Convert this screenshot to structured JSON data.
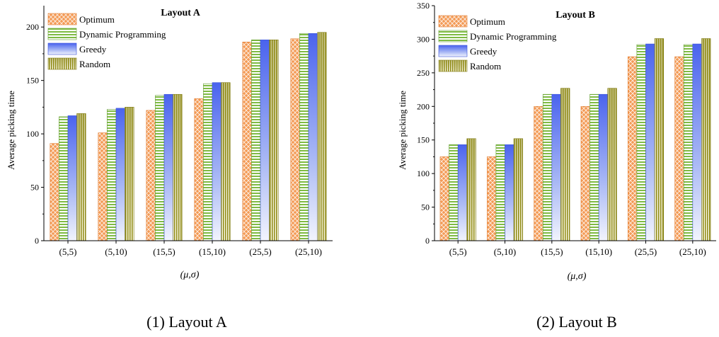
{
  "chart_data": [
    {
      "type": "bar",
      "title": "Layout A",
      "xlabel": "(μ,σ)",
      "ylabel": "Average picking time",
      "caption": "(1) Layout A",
      "categories": [
        "(5,5)",
        "(5,10)",
        "(15,5)",
        "(15,10)",
        "(25,5)",
        "(25,10)"
      ],
      "ylim": [
        0,
        220
      ],
      "yticks": [
        0,
        50,
        100,
        150,
        200
      ],
      "legend_position": "top-left",
      "series": [
        {
          "name": "Optimum",
          "values": [
            91,
            101,
            122,
            133,
            186,
            189
          ]
        },
        {
          "name": "Dynamic Programming",
          "values": [
            116,
            123,
            136,
            147,
            188,
            194
          ]
        },
        {
          "name": "Greedy",
          "values": [
            117,
            124,
            137,
            148,
            188,
            194
          ]
        },
        {
          "name": "Random",
          "values": [
            119,
            125,
            137,
            148,
            188,
            195
          ]
        }
      ]
    },
    {
      "type": "bar",
      "title": "Layout B",
      "xlabel": "(μ,σ)",
      "ylabel": "Average picking time",
      "caption": "(2) Layout B",
      "categories": [
        "(5,5)",
        "(5,10)",
        "(15,5)",
        "(15,10)",
        "(25,5)",
        "(25,10)"
      ],
      "ylim": [
        0,
        350
      ],
      "yticks": [
        0,
        50,
        100,
        150,
        200,
        250,
        300,
        350
      ],
      "legend_position": "top-left",
      "series": [
        {
          "name": "Optimum",
          "values": [
            125,
            125,
            200,
            200,
            274,
            274
          ]
        },
        {
          "name": "Dynamic Programming",
          "values": [
            143,
            143,
            218,
            218,
            292,
            292
          ]
        },
        {
          "name": "Greedy",
          "values": [
            143,
            143,
            218,
            218,
            293,
            293
          ]
        },
        {
          "name": "Random",
          "values": [
            152,
            152,
            227,
            227,
            301,
            301
          ]
        }
      ]
    }
  ],
  "series_colors": [
    "#f08a3c",
    "#77b53a",
    "#5470ee",
    "#8f8a14"
  ]
}
